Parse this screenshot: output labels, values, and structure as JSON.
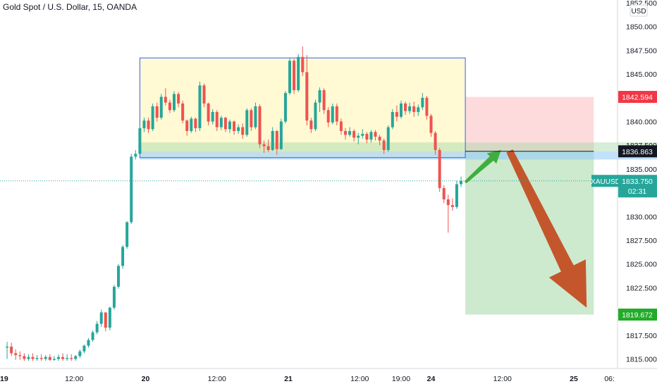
{
  "header": {
    "title": "Gold Spot / U.S. Dollar, 15, OANDA"
  },
  "price_axis": {
    "currency": "USD",
    "ticks": [
      "1852.500",
      "1850.000",
      "1847.500",
      "1845.000",
      "1842.500",
      "1840.000",
      "1837.500",
      "1835.000",
      "1832.500",
      "1830.000",
      "1827.500",
      "1825.000",
      "1822.500",
      "1820.000",
      "1817.500",
      "1815.000"
    ],
    "tick_values": [
      1852.5,
      1850,
      1847.5,
      1845,
      1842.5,
      1840,
      1837.5,
      1835,
      1832.5,
      1830,
      1827.5,
      1825,
      1822.5,
      1820,
      1817.5,
      1815
    ]
  },
  "time_axis": {
    "labels": [
      "19",
      "12:00",
      "20",
      "12:00",
      "21",
      "12:00",
      "19:00",
      "24",
      "12:00",
      "25",
      "06:"
    ],
    "positions": [
      0,
      0.5,
      1,
      1.5,
      2,
      2.5,
      2.79,
      3,
      3.5,
      4,
      4.25
    ]
  },
  "labels": {
    "stop_price": "1842.594",
    "entry_price": "1836.863",
    "target_price": "1819.672",
    "symbol": "XAUUSD",
    "last_price": "1833.750",
    "countdown": "02:31"
  },
  "colors": {
    "up": "#26a69a",
    "down": "#ef5350",
    "stop": "#f23645",
    "target": "#22ab29",
    "arrow_up": "#3fae3f",
    "arrow_down": "#c4562c",
    "range_box": "#fff9d4",
    "range_border": "#2962ff"
  },
  "chart_data": {
    "type": "candlestick",
    "title": "Gold Spot / U.S. Dollar, 15, OANDA",
    "symbol": "XAUUSD",
    "timeframe": "15",
    "source": "OANDA",
    "ylim": [
      1814.8,
      1853
    ],
    "last_price": 1833.75,
    "candles": [
      [
        0.03,
        1816.2,
        1816.8,
        1815.0,
        1816.3
      ],
      [
        0.06,
        1816.3,
        1816.7,
        1815.3,
        1815.6
      ],
      [
        0.09,
        1815.6,
        1816.0,
        1814.9,
        1815.4
      ],
      [
        0.12,
        1815.4,
        1815.8,
        1814.9,
        1815.3
      ],
      [
        0.15,
        1815.3,
        1815.6,
        1814.8,
        1815.0
      ],
      [
        0.18,
        1815.0,
        1815.5,
        1814.8,
        1815.2
      ],
      [
        0.21,
        1815.2,
        1815.6,
        1814.8,
        1815.0
      ],
      [
        0.24,
        1815.0,
        1815.4,
        1814.8,
        1815.1
      ],
      [
        0.27,
        1815.1,
        1815.5,
        1814.8,
        1815.0
      ],
      [
        0.3,
        1815.0,
        1815.4,
        1814.8,
        1815.2
      ],
      [
        0.33,
        1815.2,
        1815.5,
        1814.8,
        1814.9
      ],
      [
        0.36,
        1814.9,
        1815.3,
        1814.8,
        1815.0
      ],
      [
        0.39,
        1815.0,
        1815.5,
        1814.8,
        1815.2
      ],
      [
        0.42,
        1815.2,
        1815.6,
        1814.8,
        1815.0
      ],
      [
        0.45,
        1815.0,
        1815.5,
        1814.8,
        1815.1
      ],
      [
        0.48,
        1815.1,
        1815.5,
        1814.8,
        1815.0
      ],
      [
        0.51,
        1815.0,
        1815.4,
        1814.8,
        1815.3
      ],
      [
        0.54,
        1815.3,
        1816.0,
        1815.1,
        1815.8
      ],
      [
        0.57,
        1815.8,
        1816.5,
        1815.6,
        1816.4
      ],
      [
        0.6,
        1816.4,
        1817.2,
        1816.2,
        1817.0
      ],
      [
        0.63,
        1817.0,
        1818.0,
        1816.8,
        1817.8
      ],
      [
        0.66,
        1817.8,
        1819.0,
        1817.6,
        1818.7
      ],
      [
        0.69,
        1818.7,
        1820.2,
        1818.4,
        1819.9
      ],
      [
        0.72,
        1819.9,
        1819.9,
        1817.9,
        1818.3
      ],
      [
        0.75,
        1818.3,
        1820.5,
        1818.0,
        1820.4
      ],
      [
        0.78,
        1820.4,
        1822.8,
        1820.2,
        1822.6
      ],
      [
        0.81,
        1822.6,
        1825.0,
        1822.4,
        1824.8
      ],
      [
        0.84,
        1824.8,
        1827.0,
        1824.5,
        1826.8
      ],
      [
        0.87,
        1826.8,
        1829.5,
        1826.6,
        1829.4
      ],
      [
        0.9,
        1829.4,
        1836.6,
        1829.2,
        1836.3
      ],
      [
        0.93,
        1836.3,
        1837.0,
        1836.0,
        1836.6
      ],
      [
        0.96,
        1836.6,
        1839.6,
        1836.4,
        1839.3
      ],
      [
        0.99,
        1839.3,
        1840.4,
        1838.9,
        1840.1
      ],
      [
        1.02,
        1840.1,
        1840.4,
        1838.8,
        1839.2
      ],
      [
        1.05,
        1839.2,
        1841.9,
        1839.0,
        1841.6
      ],
      [
        1.08,
        1841.6,
        1842.0,
        1840.0,
        1840.4
      ],
      [
        1.11,
        1840.4,
        1842.9,
        1840.2,
        1842.6
      ],
      [
        1.14,
        1842.6,
        1843.5,
        1841.7,
        1842.0
      ],
      [
        1.17,
        1842.0,
        1842.3,
        1840.9,
        1841.2
      ],
      [
        1.2,
        1841.2,
        1843.2,
        1841.0,
        1842.9
      ],
      [
        1.23,
        1842.9,
        1843.1,
        1841.5,
        1841.9
      ],
      [
        1.26,
        1841.9,
        1842.2,
        1839.8,
        1840.1
      ],
      [
        1.29,
        1840.1,
        1840.2,
        1838.5,
        1839.0
      ],
      [
        1.32,
        1839.0,
        1840.5,
        1838.8,
        1840.3
      ],
      [
        1.35,
        1840.3,
        1840.4,
        1838.9,
        1839.3
      ],
      [
        1.38,
        1839.3,
        1844.2,
        1839.0,
        1843.8
      ],
      [
        1.41,
        1843.8,
        1844.0,
        1841.5,
        1841.9
      ],
      [
        1.44,
        1841.9,
        1842.0,
        1839.6,
        1840.0
      ],
      [
        1.47,
        1840.0,
        1841.3,
        1839.7,
        1841.0
      ],
      [
        1.5,
        1841.0,
        1841.2,
        1839.0,
        1839.4
      ],
      [
        1.53,
        1839.4,
        1840.6,
        1839.1,
        1840.4
      ],
      [
        1.56,
        1840.4,
        1840.5,
        1838.9,
        1839.2
      ],
      [
        1.59,
        1839.2,
        1840.2,
        1838.8,
        1840.0
      ],
      [
        1.62,
        1840.0,
        1840.1,
        1838.6,
        1839.0
      ],
      [
        1.65,
        1839.0,
        1839.7,
        1838.7,
        1839.4
      ],
      [
        1.68,
        1839.4,
        1839.8,
        1838.2,
        1838.6
      ],
      [
        1.71,
        1838.6,
        1841.4,
        1838.4,
        1841.2
      ],
      [
        1.74,
        1841.2,
        1841.4,
        1839.0,
        1839.4
      ],
      [
        1.77,
        1839.4,
        1842.0,
        1839.2,
        1841.6
      ],
      [
        1.8,
        1841.6,
        1841.8,
        1837.2,
        1837.6
      ],
      [
        1.83,
        1837.6,
        1838.0,
        1836.7,
        1837.4
      ],
      [
        1.86,
        1837.4,
        1838.1,
        1836.8,
        1837.0
      ],
      [
        1.89,
        1837.0,
        1839.4,
        1836.9,
        1839.0
      ],
      [
        1.92,
        1839.0,
        1839.1,
        1836.5,
        1837.1
      ],
      [
        1.95,
        1837.1,
        1840.3,
        1837.0,
        1840.0
      ],
      [
        1.98,
        1840.0,
        1843.2,
        1839.8,
        1843.0
      ],
      [
        2.01,
        1843.0,
        1846.7,
        1842.8,
        1846.4
      ],
      [
        2.04,
        1846.4,
        1846.6,
        1842.9,
        1843.3
      ],
      [
        2.07,
        1843.3,
        1847.1,
        1843.1,
        1846.8
      ],
      [
        2.1,
        1846.8,
        1847.9,
        1844.8,
        1845.2
      ],
      [
        2.13,
        1845.2,
        1847.0,
        1839.6,
        1840.1
      ],
      [
        2.16,
        1840.1,
        1840.4,
        1838.8,
        1839.2
      ],
      [
        2.19,
        1839.2,
        1842.3,
        1839.0,
        1842.0
      ],
      [
        2.22,
        1842.0,
        1843.6,
        1841.0,
        1843.3
      ],
      [
        2.25,
        1843.3,
        1843.5,
        1840.8,
        1841.2
      ],
      [
        2.28,
        1841.2,
        1841.5,
        1839.4,
        1839.9
      ],
      [
        2.31,
        1839.9,
        1841.9,
        1839.7,
        1841.6
      ],
      [
        2.34,
        1841.6,
        1841.9,
        1839.6,
        1840.0
      ],
      [
        2.37,
        1840.0,
        1840.3,
        1838.6,
        1839.0
      ],
      [
        2.4,
        1839.0,
        1839.3,
        1838.1,
        1838.6
      ],
      [
        2.43,
        1838.6,
        1839.4,
        1838.4,
        1839.0
      ],
      [
        2.46,
        1839.0,
        1839.2,
        1837.9,
        1838.3
      ],
      [
        2.49,
        1838.3,
        1838.8,
        1837.6,
        1838.5
      ],
      [
        2.52,
        1838.5,
        1839.2,
        1838.2,
        1838.7
      ],
      [
        2.55,
        1838.7,
        1838.9,
        1837.7,
        1838.1
      ],
      [
        2.58,
        1838.1,
        1839.1,
        1837.8,
        1838.9
      ],
      [
        2.61,
        1838.9,
        1839.1,
        1838.0,
        1838.4
      ],
      [
        2.64,
        1838.4,
        1838.6,
        1837.5,
        1838.0
      ],
      [
        2.67,
        1838.0,
        1838.2,
        1836.6,
        1837.0
      ],
      [
        2.7,
        1837.0,
        1839.6,
        1836.8,
        1839.4
      ],
      [
        2.73,
        1839.4,
        1841.3,
        1839.2,
        1841.0
      ],
      [
        2.76,
        1841.0,
        1841.7,
        1840.0,
        1840.5
      ],
      [
        2.79,
        1840.5,
        1842.2,
        1840.3,
        1841.9
      ],
      [
        2.82,
        1841.9,
        1842.1,
        1840.7,
        1841.1
      ],
      [
        2.85,
        1841.1,
        1842.0,
        1840.8,
        1841.6
      ],
      [
        2.88,
        1841.6,
        1842.1,
        1840.5,
        1841.0
      ],
      [
        2.91,
        1841.0,
        1841.8,
        1840.6,
        1841.5
      ],
      [
        2.94,
        1841.5,
        1843.0,
        1841.2,
        1842.5
      ],
      [
        2.97,
        1842.5,
        1842.7,
        1840.2,
        1840.6
      ],
      [
        3.0,
        1840.6,
        1840.8,
        1838.4,
        1838.8
      ],
      [
        3.03,
        1838.8,
        1839.0,
        1836.5,
        1837.0
      ],
      [
        3.06,
        1837.0,
        1837.2,
        1832.6,
        1833.0
      ],
      [
        3.09,
        1833.0,
        1833.3,
        1831.4,
        1831.8
      ],
      [
        3.12,
        1831.8,
        1832.3,
        1828.3,
        1831.2
      ],
      [
        3.15,
        1831.2,
        1831.9,
        1830.6,
        1831.0
      ],
      [
        3.18,
        1831.0,
        1833.8,
        1830.8,
        1833.4
      ],
      [
        3.21,
        1833.4,
        1834.2,
        1833.1,
        1833.75
      ]
    ],
    "price_tags": {
      "stop": 1842.594,
      "entry": 1836.863,
      "target": 1819.672,
      "last": 1833.75
    },
    "range_box": {
      "x0": 0.96,
      "x1": 3.24,
      "y_top": 1846.7,
      "y_bottom": 1836.2
    },
    "position": {
      "x0": 3.24,
      "x1": 4.14,
      "stop": 1842.594,
      "entry": 1836.863,
      "target": 1819.672
    },
    "support_zone": {
      "x0": 0.96,
      "x1": 4.98,
      "y_top": 1837.8,
      "y_bottom": 1836.0
    },
    "forecast": {
      "up_arrow": {
        "from": [
          3.24,
          1833.6
        ],
        "to": [
          3.49,
          1837.0
        ]
      },
      "down_arrow": {
        "from": [
          3.55,
          1836.9
        ],
        "to": [
          4.09,
          1820.4
        ]
      }
    },
    "x_axis_days": [
      "19",
      "20",
      "21",
      "24",
      "25"
    ]
  }
}
